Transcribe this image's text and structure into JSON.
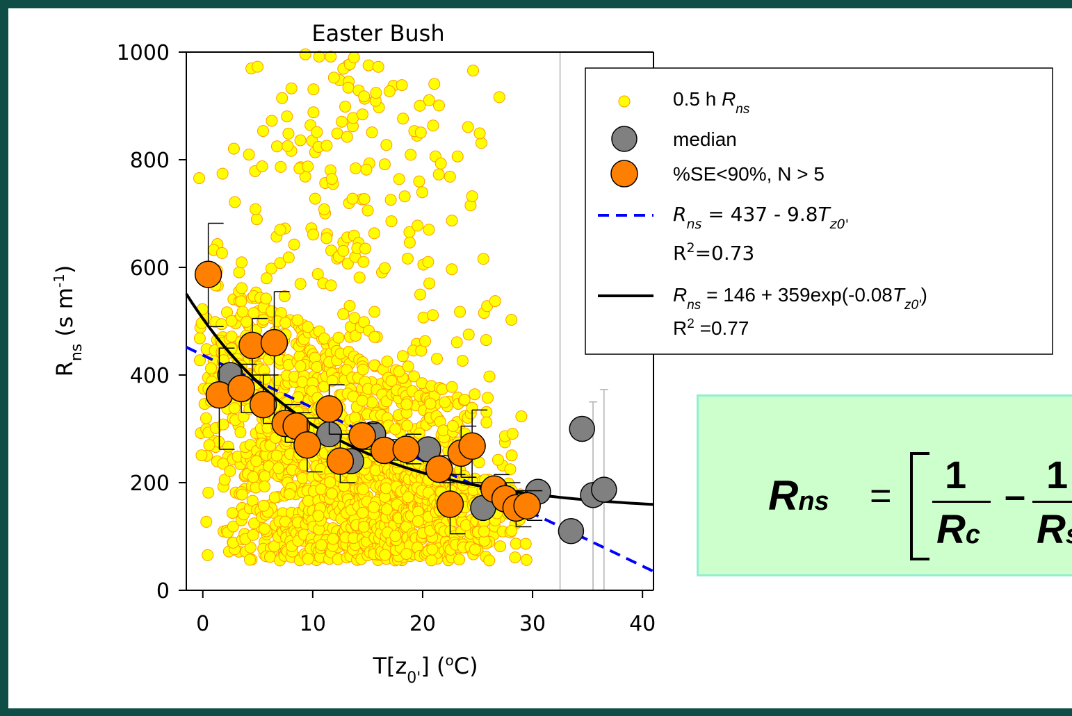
{
  "chart_data": {
    "type": "scatter",
    "title": "Easter Bush",
    "xlabel": "T[z0'] (°C)",
    "ylabel": "Rns (s m-1)",
    "xlim": [
      -1.5,
      41
    ],
    "ylim": [
      0,
      1000
    ],
    "xticks": [
      0,
      10,
      20,
      30,
      40
    ],
    "yticks": [
      0,
      200,
      400,
      600,
      800,
      1000
    ],
    "grid": false,
    "legend_position": "top-right",
    "legend": [
      {
        "label": "0.5 h Rns",
        "type": "marker",
        "color": "#ffff00"
      },
      {
        "label": "median",
        "type": "marker",
        "color": "#808080"
      },
      {
        "label": "%SE<90%, N > 5",
        "type": "marker",
        "color": "#ff8000"
      },
      {
        "label": "Rns = 437 - 9.8Tz0'",
        "r2": "R2=0.73",
        "type": "line",
        "color": "#0000ff",
        "dash": true
      },
      {
        "label": "Rns = 146 + 359exp(-0.08Tz0')",
        "r2": "R2 =0.77",
        "type": "line",
        "color": "#000000",
        "dash": false
      }
    ],
    "series": [
      {
        "name": "median",
        "color": "#808080",
        "points": [
          [
            2.5,
            400
          ],
          [
            11.5,
            290
          ],
          [
            13.5,
            240
          ],
          [
            15.5,
            290
          ],
          [
            20.5,
            262
          ],
          [
            25.5,
            153
          ],
          [
            30.5,
            183
          ],
          [
            33.5,
            110
          ],
          [
            34.5,
            300
          ],
          [
            35.5,
            177
          ],
          [
            36.5,
            187
          ]
        ]
      },
      {
        "name": "%SE<90%, N > 5",
        "color": "#ff8000",
        "points": [
          {
            "x": 0.5,
            "y": 587,
            "err": [
              490,
              682
            ]
          },
          {
            "x": 1.5,
            "y": 363,
            "err": [
              262,
              450
            ]
          },
          {
            "x": 3.5,
            "y": 375,
            "err": [
              330,
              420
            ]
          },
          {
            "x": 4.5,
            "y": 455,
            "err": [
              400,
              505
            ]
          },
          {
            "x": 5.5,
            "y": 345,
            "err": [
              310,
              400
            ]
          },
          {
            "x": 6.5,
            "y": 460,
            "err": [
              300,
              555
            ]
          },
          {
            "x": 7.5,
            "y": 310,
            "err": [
              275,
              345
            ]
          },
          {
            "x": 8.5,
            "y": 305,
            "err": [
              280,
              330
            ]
          },
          {
            "x": 9.5,
            "y": 270,
            "err": [
              220,
              320
            ]
          },
          {
            "x": 11.5,
            "y": 337,
            "err": [
              290,
              382
            ]
          },
          {
            "x": 12.5,
            "y": 240,
            "err": [
              200,
              290
            ]
          },
          {
            "x": 14.5,
            "y": 287,
            "err": [
              262,
              310
            ]
          },
          {
            "x": 16.5,
            "y": 260,
            "err": [
              242,
              280
            ]
          },
          {
            "x": 18.5,
            "y": 262,
            "err": [
              235,
              290
            ]
          },
          {
            "x": 21.5,
            "y": 225,
            "err": [
              200,
              250
            ]
          },
          {
            "x": 22.5,
            "y": 160,
            "err": [
              105,
              215
            ]
          },
          {
            "x": 23.5,
            "y": 255,
            "err": [
              210,
              305
            ]
          },
          {
            "x": 24.5,
            "y": 268,
            "err": [
              200,
              335
            ]
          },
          {
            "x": 26.5,
            "y": 188,
            "err": [
              160,
              215
            ]
          },
          {
            "x": 27.5,
            "y": 170,
            "err": [
              140,
              200
            ]
          },
          {
            "x": 28.5,
            "y": 153,
            "err": [
              118,
              185
            ]
          },
          {
            "x": 29.5,
            "y": 157,
            "err": [
              130,
              185
            ]
          }
        ]
      },
      {
        "name": "linear fit",
        "color": "#0000ff",
        "equation": {
          "a": 437,
          "b": -9.8
        }
      },
      {
        "name": "exponential fit",
        "color": "#000000",
        "equation": {
          "a": 146,
          "b": 359,
          "k": -0.08
        }
      }
    ],
    "grey_errorbars": [
      {
        "x": 32.5,
        "top": 1000
      },
      {
        "x": 35.5,
        "top": 350
      },
      {
        "x": 36.5,
        "top": 373
      }
    ],
    "raw_scatter_note": "≈2000 half-hourly points, densest between 5 and 30 °C and 50–500 s m-1"
  },
  "equation_box": {
    "lhs": "Rns",
    "numerator1": "1",
    "denominator1": "Rc",
    "numerator2": "1",
    "denominator2": "Rs",
    "bg_color": "#ccffcc"
  }
}
